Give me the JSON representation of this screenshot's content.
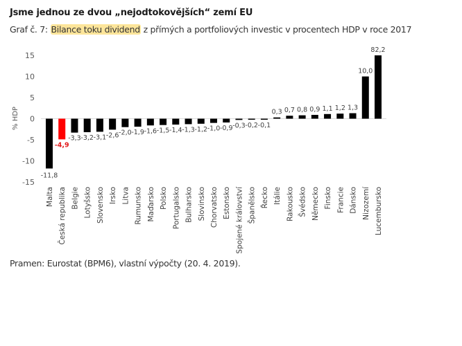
{
  "header": {
    "title": "Jsme jednou ze dvou „nejodtokovějších“ zemí EU",
    "subtitle_prefix": "Graf č. 7: ",
    "subtitle_highlight": "Bilance toku dividend",
    "subtitle_rest": " z přímých a portfoliových investic v procentech HDP v roce 2017"
  },
  "footer": {
    "source": "Pramen: Eurostat (BPM6), vlastní výpočty (20. 4. 2019)."
  },
  "colors": {
    "bar": "#000000",
    "highlight_bar": "#ff0000",
    "highlight_label": "#e31a1c",
    "title_highlight_bg": "#fde59a"
  },
  "chart_data": {
    "type": "bar",
    "title": "Bilance toku dividend z přímých a portfoliových investic v procentech HDP v roce 2017",
    "xlabel": "",
    "ylabel": "% HDP",
    "ylim": [
      -15,
      15
    ],
    "yticks": [
      15,
      10,
      5,
      0,
      -5,
      -10,
      -15
    ],
    "ytick_labels": [
      "15",
      "10",
      "5",
      "0",
      "-5",
      "-10",
      "-15"
    ],
    "grid": false,
    "legend": "none",
    "clipped_note": "Lucembursko bar exceeds axis maximum (value 82,2)",
    "highlight_category": "Česká republika",
    "categories": [
      "Malta",
      "Česká republika",
      "Belgie",
      "Lotyšsko",
      "Slovensko",
      "Irsko",
      "Litva",
      "Rumunsko",
      "Maďarsko",
      "Polsko",
      "Portugalsko",
      "Bulharsko",
      "Slovinsko",
      "Chorvatsko",
      "Estonsko",
      "Spojené království",
      "Španělsko",
      "Řecko",
      "Itálie",
      "Rakousko",
      "Švédsko",
      "Německo",
      "Finsko",
      "Francie",
      "Dánsko",
      "Nizozemí",
      "Lucembursko"
    ],
    "values": [
      -11.8,
      -4.9,
      -3.3,
      -3.2,
      -3.1,
      -2.6,
      -2.0,
      -1.9,
      -1.6,
      -1.5,
      -1.4,
      -1.3,
      -1.2,
      -1.0,
      -0.9,
      -0.3,
      -0.2,
      -0.1,
      0.3,
      0.7,
      0.8,
      0.9,
      1.1,
      1.2,
      1.3,
      10.0,
      82.2
    ],
    "value_labels": [
      "-11,8",
      "-4,9",
      "-3,3",
      "-3,2",
      "-3,1",
      "-2,6",
      "-2,0",
      "-1,9",
      "-1,6",
      "-1,5",
      "-1,4",
      "-1,3",
      "-1,2",
      "-1,0",
      "-0,9",
      "-0,3",
      "-0,2",
      "-0,1",
      "0,3",
      "0,7",
      "0,8",
      "0,9",
      "1,1",
      "1,2",
      "1,3",
      "10,0",
      "82,2"
    ]
  }
}
